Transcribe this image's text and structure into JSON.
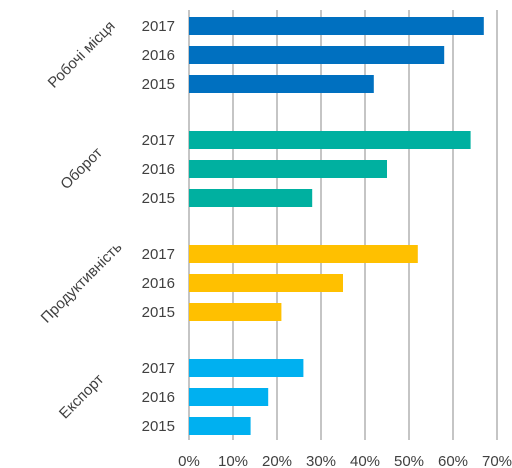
{
  "chart_data": {
    "type": "bar",
    "orientation": "horizontal",
    "title": "",
    "xlabel": "",
    "ylabel": "",
    "xlim": [
      0,
      70
    ],
    "x_ticks": [
      "0%",
      "10%",
      "20%",
      "30%",
      "40%",
      "50%",
      "60%",
      "70%"
    ],
    "grid": true,
    "groups": [
      {
        "name": "Робочі місця",
        "color": "#0070C0",
        "bars": [
          {
            "year": "2017",
            "value": 67
          },
          {
            "year": "2016",
            "value": 58
          },
          {
            "year": "2015",
            "value": 42
          }
        ]
      },
      {
        "name": "Оборот",
        "color": "#00B0A0",
        "bars": [
          {
            "year": "2017",
            "value": 64
          },
          {
            "year": "2016",
            "value": 45
          },
          {
            "year": "2015",
            "value": 28
          }
        ]
      },
      {
        "name": "Продуктивність",
        "color": "#FFC000",
        "bars": [
          {
            "year": "2017",
            "value": 52
          },
          {
            "year": "2016",
            "value": 35
          },
          {
            "year": "2015",
            "value": 21
          }
        ]
      },
      {
        "name": "Експорт",
        "color": "#00B0F0",
        "bars": [
          {
            "year": "2017",
            "value": 26
          },
          {
            "year": "2016",
            "value": 18
          },
          {
            "year": "2015",
            "value": 14
          }
        ]
      }
    ]
  }
}
